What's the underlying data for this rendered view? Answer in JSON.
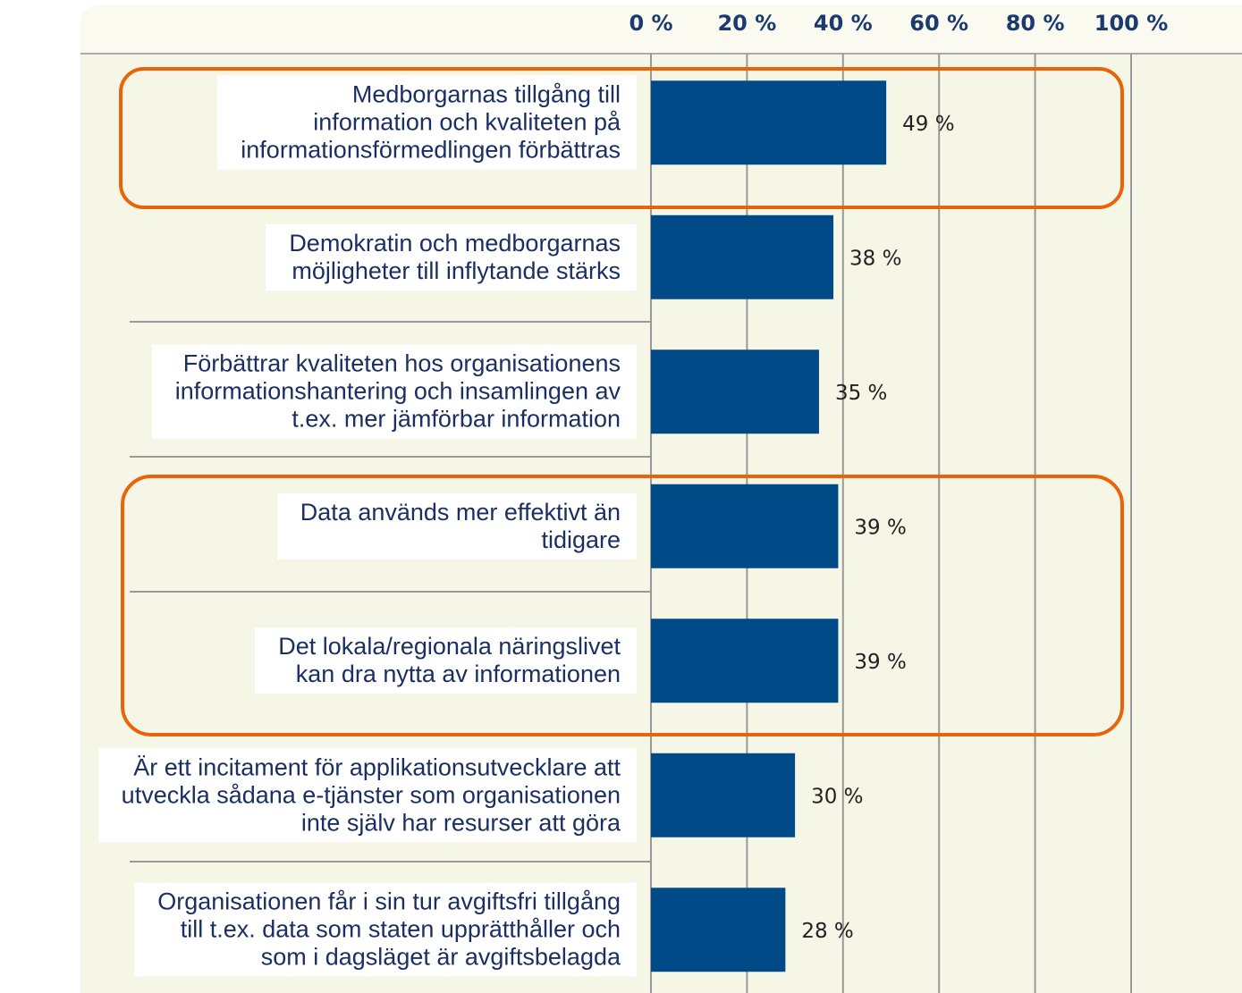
{
  "chart_data": {
    "type": "barh",
    "categories": [
      "Medborgarnas tillgång till\ninformation och kvaliteten på\ninformationsförmedlingen förbättras",
      "Demokratin och medborgarnas\nmöjligheter till inflytande stärks",
      "Förbättrar kvaliteten hos organisationens\ninformationshantering och insamlingen av\nt.ex. mer jämförbar information",
      "Data används mer effektivt än\ntidigare",
      "Det lokala/regionala näringslivet\nkan dra nytta av informationen",
      "Är ett incitament för applikationsutvecklare att\nutveckla sådana e-tjänster som organisationen\ninte själv har resurser att göra",
      "Organisationen får i sin tur avgiftsfri tillgång\ntill t.ex. data som staten upprätthåller och\nsom i dagsläget är avgiftsbelagda"
    ],
    "values": [
      49,
      38,
      35,
      39,
      39,
      30,
      28
    ],
    "value_labels": [
      "49 %",
      "38 %",
      "35 %",
      "39 %",
      "39 %",
      "30 %",
      "28 %"
    ],
    "color": "#004a87",
    "xlim": [
      0,
      100
    ],
    "xticks": [
      {
        "value": 0,
        "label": "0 %"
      },
      {
        "value": 20,
        "label": "20 %"
      },
      {
        "value": 40,
        "label": "40 %"
      },
      {
        "value": 60,
        "label": "60 %"
      },
      {
        "value": 80,
        "label": "80 %"
      },
      {
        "value": 100,
        "label": "100 %"
      }
    ],
    "grid": true
  }
}
